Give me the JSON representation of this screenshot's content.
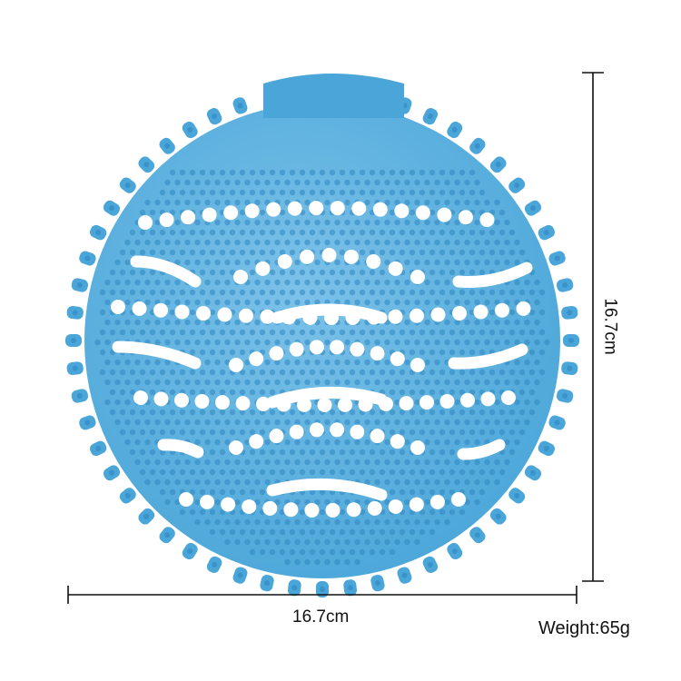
{
  "product": {
    "image_alt": "blue round urinal screen",
    "color": "#4aa6d8",
    "color_dark": "#2f86bf",
    "color_light": "#7cc2ea"
  },
  "dimensions": {
    "width_label": "16.7cm",
    "height_label": "16.7cm"
  },
  "spec": {
    "weight_label": "Weight:65g"
  },
  "line_color": "#111111"
}
